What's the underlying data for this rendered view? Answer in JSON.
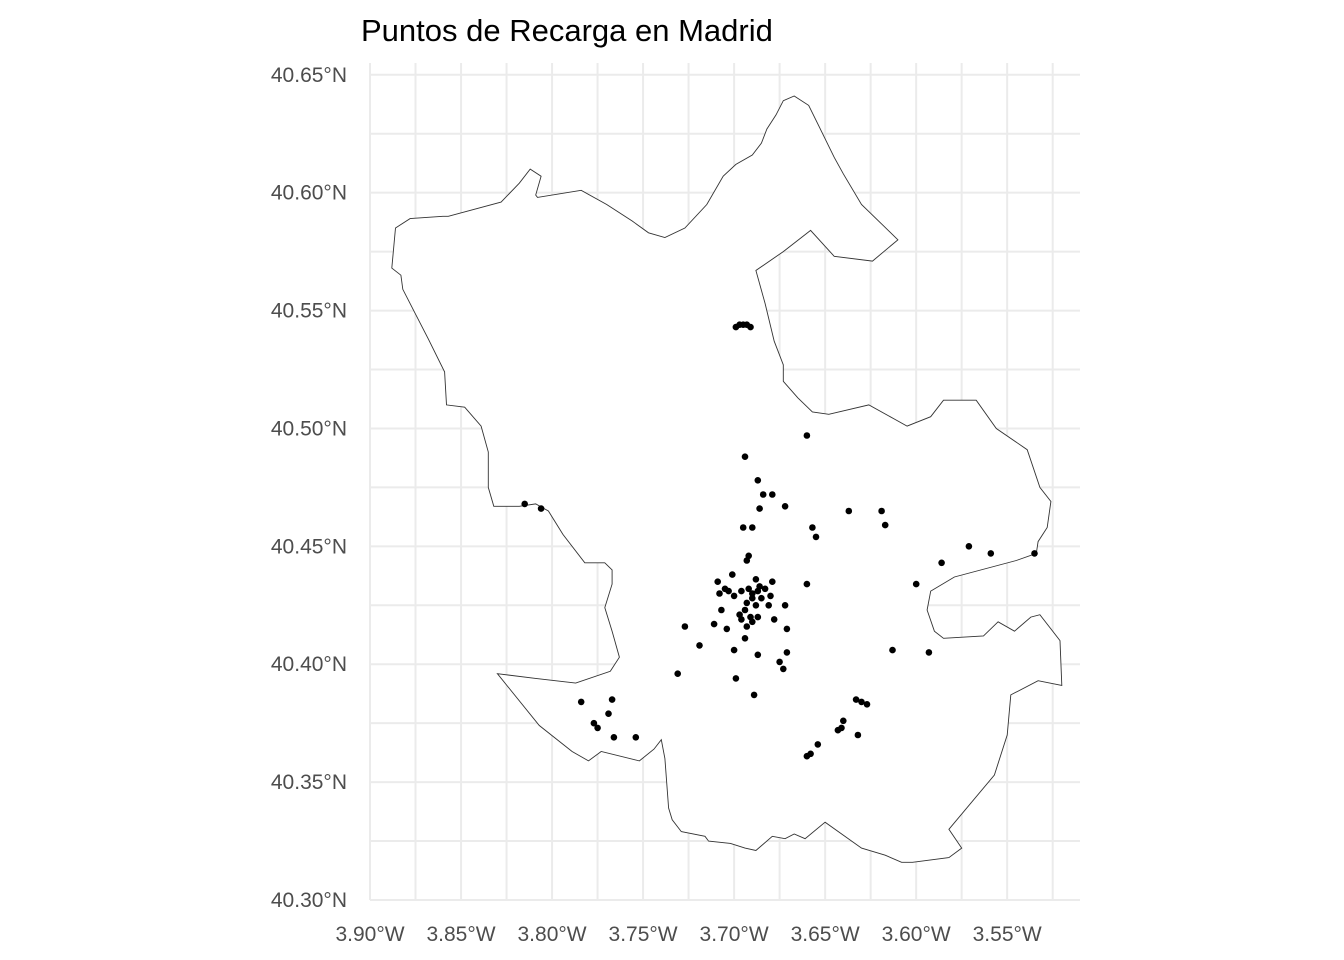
{
  "chart_data": {
    "type": "scatter",
    "title": "Puntos de Recarga en Madrid",
    "xlabel": "",
    "ylabel": "",
    "xlim": [
      -3.9,
      -3.51
    ],
    "ylim": [
      40.3,
      40.655
    ],
    "grid": true,
    "x_ticks": [
      {
        "value": -3.9,
        "label": "3.90°W"
      },
      {
        "value": -3.85,
        "label": "3.85°W"
      },
      {
        "value": -3.8,
        "label": "3.80°W"
      },
      {
        "value": -3.75,
        "label": "3.75°W"
      },
      {
        "value": -3.7,
        "label": "3.70°W"
      },
      {
        "value": -3.65,
        "label": "3.65°W"
      },
      {
        "value": -3.6,
        "label": "3.60°W"
      },
      {
        "value": -3.55,
        "label": "3.55°W"
      }
    ],
    "y_ticks": [
      {
        "value": 40.3,
        "label": "40.30°N"
      },
      {
        "value": 40.35,
        "label": "40.35°N"
      },
      {
        "value": 40.4,
        "label": "40.40°N"
      },
      {
        "value": 40.45,
        "label": "40.45°N"
      },
      {
        "value": 40.5,
        "label": "40.50°N"
      },
      {
        "value": 40.55,
        "label": "40.55°N"
      },
      {
        "value": 40.6,
        "label": "40.60°N"
      },
      {
        "value": 40.65,
        "label": "40.65°N"
      }
    ],
    "x_minor_ticks": [
      -3.875,
      -3.825,
      -3.775,
      -3.725,
      -3.675,
      -3.625,
      -3.575,
      -3.525
    ],
    "y_minor_ticks": [
      40.325,
      40.375,
      40.425,
      40.475,
      40.525,
      40.575,
      40.625
    ],
    "boundary": [
      [
        -3.667,
        40.641
      ],
      [
        -3.659,
        40.637
      ],
      [
        -3.652,
        40.626
      ],
      [
        -3.645,
        40.615
      ],
      [
        -3.64,
        40.608
      ],
      [
        -3.63,
        40.595
      ],
      [
        -3.618,
        40.586
      ],
      [
        -3.61,
        40.58
      ],
      [
        -3.624,
        40.571
      ],
      [
        -3.645,
        40.573
      ],
      [
        -3.658,
        40.584
      ],
      [
        -3.673,
        40.575
      ],
      [
        -3.688,
        40.567
      ],
      [
        -3.683,
        40.553
      ],
      [
        -3.678,
        40.537
      ],
      [
        -3.673,
        40.527
      ],
      [
        -3.673,
        40.52
      ],
      [
        -3.665,
        40.513
      ],
      [
        -3.657,
        40.507
      ],
      [
        -3.648,
        40.506
      ],
      [
        -3.626,
        40.51
      ],
      [
        -3.612,
        40.504
      ],
      [
        -3.605,
        40.501
      ],
      [
        -3.592,
        40.505
      ],
      [
        -3.585,
        40.512
      ],
      [
        -3.567,
        40.512
      ],
      [
        -3.556,
        40.5
      ],
      [
        -3.539,
        40.491
      ],
      [
        -3.532,
        40.475
      ],
      [
        -3.526,
        40.469
      ],
      [
        -3.528,
        40.458
      ],
      [
        -3.533,
        40.452
      ],
      [
        -3.534,
        40.447
      ],
      [
        -3.545,
        40.444
      ],
      [
        -3.579,
        40.437
      ],
      [
        -3.592,
        40.431
      ],
      [
        -3.594,
        40.423
      ],
      [
        -3.59,
        40.414
      ],
      [
        -3.585,
        40.411
      ],
      [
        -3.563,
        40.412
      ],
      [
        -3.555,
        40.418
      ],
      [
        -3.546,
        40.414
      ],
      [
        -3.537,
        40.42
      ],
      [
        -3.532,
        40.421
      ],
      [
        -3.521,
        40.41
      ],
      [
        -3.52,
        40.391
      ],
      [
        -3.533,
        40.393
      ],
      [
        -3.548,
        40.387
      ],
      [
        -3.55,
        40.37
      ],
      [
        -3.557,
        40.353
      ],
      [
        -3.582,
        40.33
      ],
      [
        -3.575,
        40.322
      ],
      [
        -3.582,
        40.318
      ],
      [
        -3.602,
        40.316
      ],
      [
        -3.608,
        40.316
      ],
      [
        -3.617,
        40.319
      ],
      [
        -3.63,
        40.322
      ],
      [
        -3.65,
        40.333
      ],
      [
        -3.661,
        40.326
      ],
      [
        -3.667,
        40.328
      ],
      [
        -3.672,
        40.326
      ],
      [
        -3.679,
        40.327
      ],
      [
        -3.688,
        40.321
      ],
      [
        -3.694,
        40.322
      ],
      [
        -3.702,
        40.324
      ],
      [
        -3.714,
        40.325
      ],
      [
        -3.716,
        40.327
      ],
      [
        -3.729,
        40.329
      ],
      [
        -3.734,
        40.334
      ],
      [
        -3.736,
        40.339
      ],
      [
        -3.738,
        40.36
      ],
      [
        -3.74,
        40.368
      ],
      [
        -3.744,
        40.364
      ],
      [
        -3.752,
        40.359
      ],
      [
        -3.773,
        40.363
      ],
      [
        -3.78,
        40.359
      ],
      [
        -3.789,
        40.363
      ],
      [
        -3.807,
        40.374
      ],
      [
        -3.83,
        40.396
      ],
      [
        -3.809,
        40.394
      ],
      [
        -3.787,
        40.392
      ],
      [
        -3.768,
        40.397
      ],
      [
        -3.763,
        40.403
      ],
      [
        -3.767,
        40.414
      ],
      [
        -3.771,
        40.424
      ],
      [
        -3.767,
        40.434
      ],
      [
        -3.767,
        40.44
      ],
      [
        -3.771,
        40.443
      ],
      [
        -3.782,
        40.443
      ],
      [
        -3.794,
        40.455
      ],
      [
        -3.802,
        40.465
      ],
      [
        -3.809,
        40.468
      ],
      [
        -3.818,
        40.467
      ],
      [
        -3.832,
        40.467
      ],
      [
        -3.835,
        40.475
      ],
      [
        -3.835,
        40.49
      ],
      [
        -3.839,
        40.501
      ],
      [
        -3.848,
        40.509
      ],
      [
        -3.858,
        40.51
      ],
      [
        -3.859,
        40.524
      ],
      [
        -3.868,
        40.538
      ],
      [
        -3.876,
        40.55
      ],
      [
        -3.882,
        40.559
      ],
      [
        -3.883,
        40.565
      ],
      [
        -3.888,
        40.568
      ],
      [
        -3.886,
        40.585
      ],
      [
        -3.878,
        40.589
      ],
      [
        -3.86,
        40.59
      ],
      [
        -3.857,
        40.59
      ],
      [
        -3.828,
        40.596
      ],
      [
        -3.818,
        40.604
      ],
      [
        -3.812,
        40.61
      ],
      [
        -3.806,
        40.607
      ],
      [
        -3.809,
        40.599
      ],
      [
        -3.808,
        40.598
      ],
      [
        -3.784,
        40.601
      ],
      [
        -3.77,
        40.595
      ],
      [
        -3.756,
        40.588
      ],
      [
        -3.747,
        40.583
      ],
      [
        -3.738,
        40.581
      ],
      [
        -3.727,
        40.585
      ],
      [
        -3.715,
        40.595
      ],
      [
        -3.706,
        40.607
      ],
      [
        -3.699,
        40.612
      ],
      [
        -3.69,
        40.616
      ],
      [
        -3.685,
        40.621
      ],
      [
        -3.682,
        40.627
      ],
      [
        -3.677,
        40.633
      ],
      [
        -3.673,
        40.639
      ]
    ],
    "points": [
      [
        -3.699,
        40.543
      ],
      [
        -3.697,
        40.544
      ],
      [
        -3.695,
        40.544
      ],
      [
        -3.693,
        40.544
      ],
      [
        -3.691,
        40.543
      ],
      [
        -3.66,
        40.497
      ],
      [
        -3.694,
        40.488
      ],
      [
        -3.687,
        40.478
      ],
      [
        -3.684,
        40.472
      ],
      [
        -3.679,
        40.472
      ],
      [
        -3.686,
        40.466
      ],
      [
        -3.672,
        40.467
      ],
      [
        -3.815,
        40.468
      ],
      [
        -3.806,
        40.466
      ],
      [
        -3.637,
        40.465
      ],
      [
        -3.619,
        40.465
      ],
      [
        -3.617,
        40.459
      ],
      [
        -3.695,
        40.458
      ],
      [
        -3.69,
        40.458
      ],
      [
        -3.657,
        40.458
      ],
      [
        -3.655,
        40.454
      ],
      [
        -3.571,
        40.45
      ],
      [
        -3.559,
        40.447
      ],
      [
        -3.535,
        40.447
      ],
      [
        -3.693,
        40.444
      ],
      [
        -3.692,
        40.446
      ],
      [
        -3.586,
        40.443
      ],
      [
        -3.701,
        40.438
      ],
      [
        -3.709,
        40.435
      ],
      [
        -3.688,
        40.436
      ],
      [
        -3.679,
        40.435
      ],
      [
        -3.686,
        40.433
      ],
      [
        -3.692,
        40.432
      ],
      [
        -3.696,
        40.431
      ],
      [
        -3.705,
        40.432
      ],
      [
        -3.69,
        40.43
      ],
      [
        -3.687,
        40.431
      ],
      [
        -3.683,
        40.432
      ],
      [
        -3.66,
        40.434
      ],
      [
        -3.6,
        40.434
      ],
      [
        -3.708,
        40.43
      ],
      [
        -3.7,
        40.429
      ],
      [
        -3.703,
        40.431
      ],
      [
        -3.69,
        40.428
      ],
      [
        -3.685,
        40.428
      ],
      [
        -3.68,
        40.429
      ],
      [
        -3.693,
        40.426
      ],
      [
        -3.688,
        40.425
      ],
      [
        -3.681,
        40.425
      ],
      [
        -3.672,
        40.425
      ],
      [
        -3.707,
        40.423
      ],
      [
        -3.697,
        40.421
      ],
      [
        -3.694,
        40.423
      ],
      [
        -3.691,
        40.42
      ],
      [
        -3.69,
        40.418
      ],
      [
        -3.687,
        40.42
      ],
      [
        -3.696,
        40.419
      ],
      [
        -3.678,
        40.419
      ],
      [
        -3.711,
        40.417
      ],
      [
        -3.693,
        40.416
      ],
      [
        -3.671,
        40.415
      ],
      [
        -3.727,
        40.416
      ],
      [
        -3.704,
        40.415
      ],
      [
        -3.694,
        40.411
      ],
      [
        -3.719,
        40.408
      ],
      [
        -3.7,
        40.406
      ],
      [
        -3.687,
        40.404
      ],
      [
        -3.671,
        40.405
      ],
      [
        -3.675,
        40.401
      ],
      [
        -3.673,
        40.398
      ],
      [
        -3.613,
        40.406
      ],
      [
        -3.593,
        40.405
      ],
      [
        -3.731,
        40.396
      ],
      [
        -3.699,
        40.394
      ],
      [
        -3.689,
        40.387
      ],
      [
        -3.784,
        40.384
      ],
      [
        -3.767,
        40.385
      ],
      [
        -3.633,
        40.385
      ],
      [
        -3.63,
        40.384
      ],
      [
        -3.627,
        40.383
      ],
      [
        -3.769,
        40.379
      ],
      [
        -3.777,
        40.375
      ],
      [
        -3.775,
        40.373
      ],
      [
        -3.64,
        40.376
      ],
      [
        -3.641,
        40.373
      ],
      [
        -3.643,
        40.372
      ],
      [
        -3.632,
        40.37
      ],
      [
        -3.766,
        40.369
      ],
      [
        -3.754,
        40.369
      ],
      [
        -3.654,
        40.366
      ],
      [
        -3.658,
        40.362
      ],
      [
        -3.66,
        40.361
      ]
    ]
  }
}
